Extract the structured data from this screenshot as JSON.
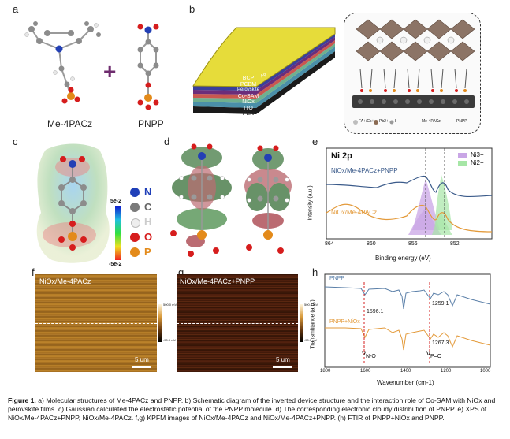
{
  "panels": {
    "a": {
      "label": "a",
      "mol1": "Me-4PACz",
      "plus": "+",
      "mol2": "PNPP"
    },
    "b": {
      "label": "b",
      "layers": [
        "Ag",
        "BCP",
        "PCBM",
        "Perovskite",
        "Co-SAM",
        "NiOx",
        "ITO",
        "PEN"
      ],
      "legend": [
        "FA+/Cs+",
        "Pb2+",
        "I-",
        "Me-4PACz",
        "PNPP"
      ]
    },
    "c": {
      "label": "c",
      "scale_top": "5e-2",
      "scale_bottom": "-5e-2",
      "elements": [
        "N",
        "C",
        "H",
        "O",
        "P"
      ],
      "element_colors": [
        "#1f3fb8",
        "#7a7a7a",
        "#e8e8e8",
        "#d61d1d",
        "#e38a1a"
      ]
    },
    "d": {
      "label": "d"
    },
    "e": {
      "label": "e",
      "title": "Ni 2p",
      "legend": [
        "Ni3+",
        "Ni2+"
      ],
      "trace_top": "NiOx/Me-4PACz+PNPP",
      "trace_bottom": "NiOx/Me-4PACz",
      "xlabel": "Binding energy (eV)",
      "ylabel": "Intensity (a.u.)",
      "ticks": [
        "864",
        "860",
        "856",
        "852"
      ]
    },
    "f": {
      "label": "f",
      "title": "NiOx/Me-4PACz",
      "scalebar": "5 um",
      "cbar_top": "500.0 mV",
      "cbar_bottom": "-50.0 mV"
    },
    "g": {
      "label": "g",
      "title": "NiOx/Me-4PACz+PNPP",
      "scalebar": "5 um",
      "cbar_top": "500.0 mV",
      "cbar_bottom": "-50.0 mV"
    },
    "h": {
      "label": "h",
      "trace_top": "PNPP",
      "trace_bottom": "PNPP+NiOx",
      "peak_1596": "1596.1",
      "peak_1259": "1259.1",
      "peak_1267": "1267.3",
      "mark_no": "ν",
      "mark_no_sub": "N-O",
      "mark_po": "ν",
      "mark_po_sub": "P=O",
      "xlabel": "Wavenumber (cm-1)",
      "ylabel": "Transmittance (a.u.)",
      "ticks": [
        "1800",
        "1600",
        "1400",
        "1200",
        "1000"
      ]
    }
  },
  "caption": {
    "lead": "Figure 1.",
    "text": "a) Molecular structures of Me-4PACz and PNPP. b) Schematic diagram of the inverted device structure and the interaction role of Co-SAM with NiOx and perovskite films. c) Gaussian calculated the electrostatic potential of the PNPP molecule. d) The corresponding electronic cloudy distribution of PNPP. e) XPS of NiOx/Me-4PACz+PNPP, NiOx/Me-4PACz. f,g) KPFM images of NiOx/Me-4PACz and NiOx/Me-4PACz+PNPP. (h) FTIR of PNPP+NiOx and PNPP."
  }
}
